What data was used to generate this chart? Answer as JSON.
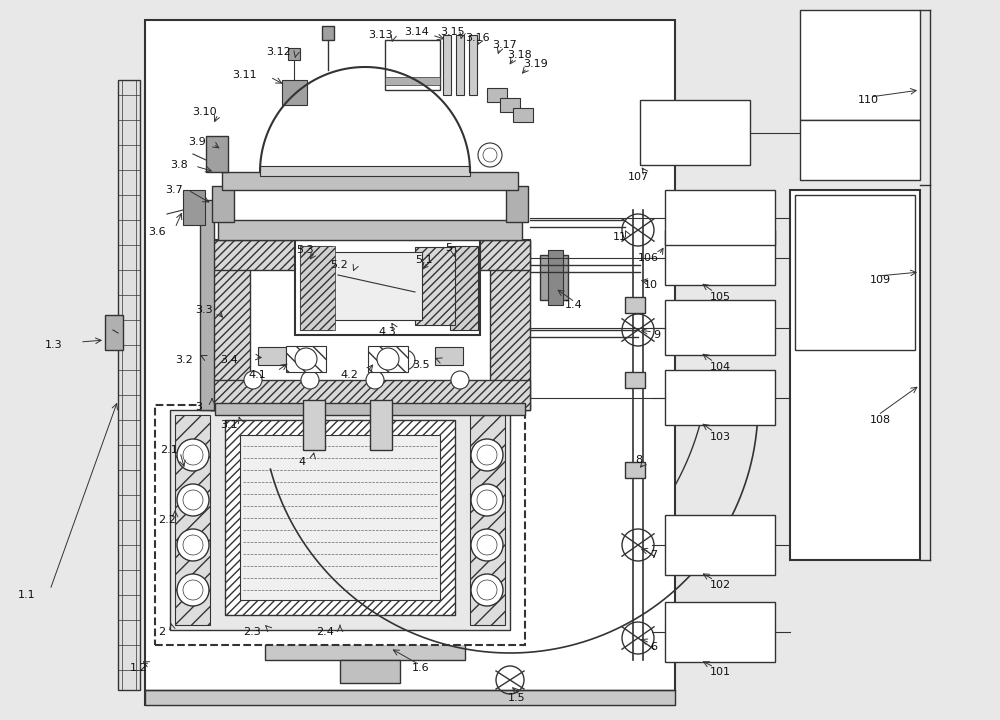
{
  "fig_width": 10.0,
  "fig_height": 7.2,
  "dpi": 100,
  "bg_color": "#e8e8e8",
  "lc": "#333333",
  "white": "#ffffff",
  "lgray": "#d0d0d0",
  "mgray": "#a0a0a0"
}
